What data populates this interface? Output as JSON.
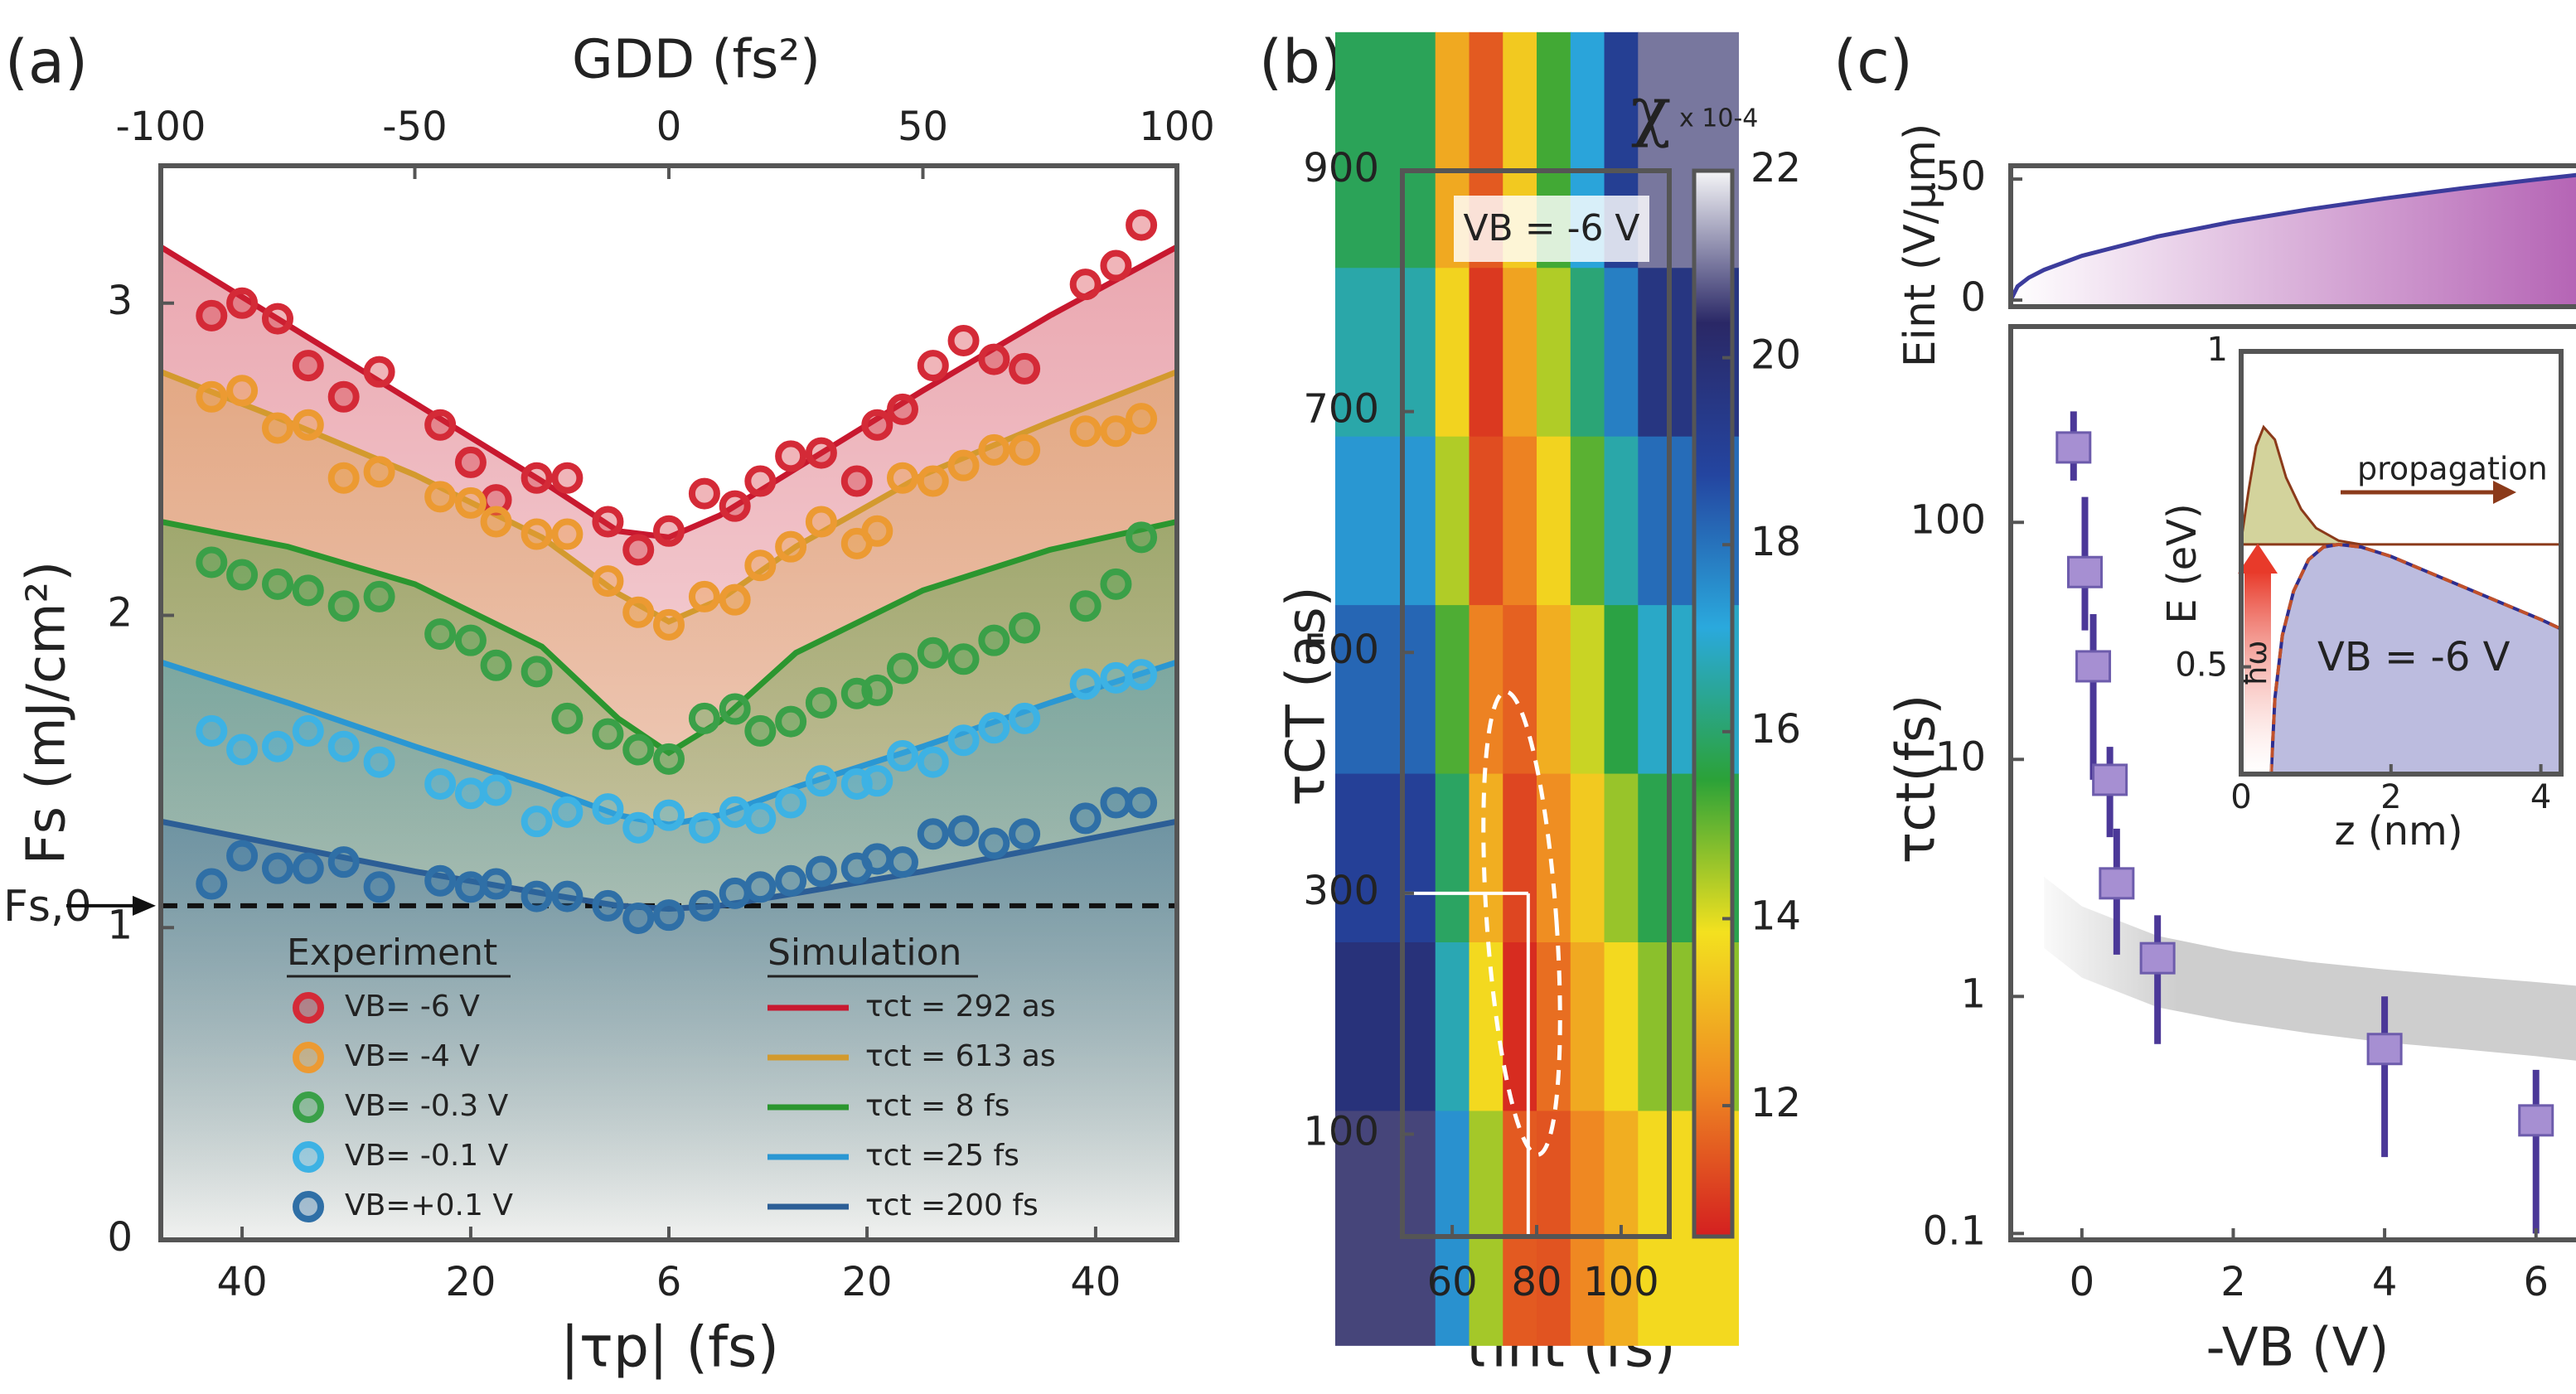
{
  "chart_data": [
    {
      "type": "scatter-line",
      "panel": "(a)",
      "xlabel": "|τp| (fs)",
      "x2label": "GDD (fs²)",
      "ylabel": "Fs (mJ/cm²)",
      "xlim": [
        -100,
        100
      ],
      "ylim": [
        0,
        3.44
      ],
      "x2ticks": [
        -100,
        -50,
        0,
        50,
        100
      ],
      "xticks": [
        {
          "value": -84,
          "label": "40"
        },
        {
          "value": -39,
          "label": "20"
        },
        {
          "value": 0,
          "label": "6"
        },
        {
          "value": 39,
          "label": "20"
        },
        {
          "value": 84,
          "label": "40"
        }
      ],
      "yticks": [
        0,
        1,
        2,
        3
      ],
      "reference": {
        "value": 1.07,
        "label": "Fs,0"
      },
      "legend_titles": [
        "Experiment",
        "Simulation"
      ],
      "x": [
        -90,
        -84,
        -77,
        -71,
        -64,
        -57,
        -45,
        -39,
        -34,
        -26,
        -20,
        -12,
        -6,
        0,
        7,
        13,
        18,
        24,
        30,
        37,
        41,
        46,
        52,
        58,
        64,
        70,
        82,
        88,
        93
      ],
      "series": [
        {
          "name": "VB= -6 V",
          "color": "#d42a37",
          "values": [
            2.96,
            3.0,
            2.95,
            2.8,
            2.7,
            2.78,
            2.61,
            2.49,
            2.37,
            2.44,
            2.44,
            2.3,
            2.21,
            2.27,
            2.39,
            2.35,
            2.43,
            2.51,
            2.52,
            2.43,
            2.61,
            2.66,
            2.8,
            2.88,
            2.82,
            2.79,
            3.06,
            3.12,
            3.25
          ]
        },
        {
          "name": "VB= -4 V",
          "color": "#ec9a32",
          "values": [
            2.7,
            2.72,
            2.6,
            2.61,
            2.44,
            2.46,
            2.38,
            2.36,
            2.3,
            2.26,
            2.26,
            2.11,
            2.01,
            1.97,
            2.06,
            2.05,
            2.16,
            2.22,
            2.3,
            2.23,
            2.27,
            2.44,
            2.43,
            2.48,
            2.53,
            2.53,
            2.59,
            2.59,
            2.63
          ]
        },
        {
          "name": "VB= -0.3 V",
          "color": "#3aa048",
          "values": [
            2.17,
            2.13,
            2.1,
            2.08,
            2.03,
            2.06,
            1.94,
            1.92,
            1.84,
            1.82,
            1.67,
            1.62,
            1.57,
            1.54,
            1.67,
            1.7,
            1.63,
            1.66,
            1.72,
            1.75,
            1.76,
            1.83,
            1.88,
            1.86,
            1.92,
            1.96,
            2.03,
            2.1,
            2.25
          ]
        },
        {
          "name": "VB= -0.1 V",
          "color": "#3db2e4",
          "values": [
            1.63,
            1.57,
            1.58,
            1.63,
            1.58,
            1.53,
            1.46,
            1.43,
            1.44,
            1.34,
            1.37,
            1.38,
            1.32,
            1.36,
            1.32,
            1.37,
            1.35,
            1.4,
            1.47,
            1.46,
            1.47,
            1.55,
            1.53,
            1.6,
            1.64,
            1.67,
            1.78,
            1.8,
            1.81
          ]
        },
        {
          "name": "VB=+0.1 V",
          "color": "#2f6fa6",
          "values": [
            1.14,
            1.23,
            1.19,
            1.19,
            1.21,
            1.13,
            1.15,
            1.13,
            1.14,
            1.1,
            1.1,
            1.07,
            1.03,
            1.04,
            1.07,
            1.11,
            1.13,
            1.15,
            1.18,
            1.19,
            1.22,
            1.21,
            1.3,
            1.31,
            1.27,
            1.3,
            1.35,
            1.4,
            1.4
          ]
        }
      ],
      "fits": {
        "x": [
          -100,
          -75,
          -50,
          -25,
          -10,
          0,
          10,
          25,
          50,
          75,
          100
        ],
        "series": [
          {
            "name": "τct = 292 as",
            "color": "#c8182f",
            "values": [
              3.18,
              2.93,
              2.68,
              2.43,
              2.27,
              2.25,
              2.32,
              2.47,
              2.72,
              2.96,
              3.18
            ]
          },
          {
            "name": "τct = 613 as",
            "color": "#d39a2e",
            "values": [
              2.78,
              2.62,
              2.45,
              2.25,
              2.07,
              1.98,
              2.05,
              2.22,
              2.45,
              2.62,
              2.78
            ]
          },
          {
            "name": "τct = 8 fs",
            "color": "#2b962f",
            "values": [
              2.3,
              2.22,
              2.1,
              1.9,
              1.67,
              1.56,
              1.66,
              1.88,
              2.08,
              2.21,
              2.3
            ]
          },
          {
            "name": "τct =25 fs",
            "color": "#2a97d3",
            "values": [
              1.85,
              1.72,
              1.58,
              1.45,
              1.36,
              1.33,
              1.36,
              1.45,
              1.58,
              1.72,
              1.85
            ]
          },
          {
            "name": "τct =200 fs",
            "color": "#2c5e96",
            "values": [
              1.34,
              1.26,
              1.18,
              1.11,
              1.07,
              1.06,
              1.07,
              1.11,
              1.18,
              1.26,
              1.34
            ]
          }
        ]
      }
    },
    {
      "type": "heatmap",
      "panel": "(b)",
      "xlabel": "τint (fs)",
      "ylabel": "τCT (as)",
      "xlim": [
        48.2,
        111.4
      ],
      "ylim": [
        15,
        900
      ],
      "xticks": [
        60,
        80,
        100
      ],
      "yticks": [
        100,
        300,
        500,
        700,
        900
      ],
      "x": [
        52,
        60,
        68,
        76,
        84,
        92,
        100,
        108
      ],
      "y": [
        50,
        190,
        330,
        470,
        610,
        750,
        890
      ],
      "z": [
        [
          20.6,
          17.5,
          14.5,
          11.5,
          11.4,
          12.2,
          12.9,
          13.7
        ],
        [
          19.8,
          16.7,
          13.7,
          10.8,
          11.8,
          12.8,
          13.7,
          14.7
        ],
        [
          19.0,
          15.9,
          12.9,
          11.2,
          12.3,
          13.4,
          14.6,
          15.7
        ],
        [
          18.2,
          15.2,
          12.1,
          11.6,
          12.9,
          14.2,
          15.6,
          16.9
        ],
        [
          17.4,
          14.4,
          11.3,
          12.1,
          13.6,
          15.1,
          16.6,
          18.1
        ],
        [
          16.6,
          13.6,
          11.0,
          12.7,
          14.4,
          16.1,
          17.8,
          19.6
        ],
        [
          15.8,
          12.8,
          11.5,
          13.4,
          15.3,
          17.2,
          19.1,
          21.0
        ]
      ],
      "clim": [
        10.6,
        22
      ],
      "cticks": [
        12,
        14,
        16,
        18,
        20,
        22
      ],
      "colormap": [
        "#d41f20",
        "#ef8a22",
        "#f3e11f",
        "#2ba238",
        "#2aa9dd",
        "#2445a0",
        "#2a2866",
        "#f5f5f7"
      ],
      "colorbar_label": "χ",
      "colorbar_scale": "x 10-4",
      "annotation": "VB = -6 V",
      "crosshair": {
        "x": 78,
        "y": 300
      }
    },
    {
      "type": "line",
      "ylabel": "Eint (V/µm)",
      "xlim": [
        -0.94,
        6.66
      ],
      "ylim": [
        -2.7,
        55.5
      ],
      "yticks": [
        0,
        50
      ],
      "x": [
        -0.94,
        -0.85,
        -0.7,
        -0.5,
        0,
        1,
        2,
        3,
        4,
        5,
        6,
        6.66
      ],
      "values": [
        0,
        5.7,
        9.3,
        12.5,
        18.3,
        26.3,
        32.4,
        37.5,
        42.0,
        46.1,
        49.8,
        52.1
      ],
      "color": "#3c3c9c",
      "fill": "#b462b4"
    },
    {
      "type": "scatter-errorbar",
      "panel": "(c)",
      "xlabel": "-VB (V)",
      "ylabel": "τct(fs)",
      "log_y": true,
      "xlim": [
        -0.94,
        6.66
      ],
      "ylim": [
        0.094,
        670
      ],
      "xticks": [
        0,
        2,
        4,
        6
      ],
      "yticks": [
        0.1,
        1,
        10,
        100
      ],
      "x": [
        -0.11,
        0.04,
        0.15,
        0.37,
        0.46,
        1.0,
        4.0,
        6.0
      ],
      "values": [
        207,
        61.7,
        24.7,
        8.2,
        3.0,
        1.45,
        0.6,
        0.3
      ],
      "lower": [
        150,
        35,
        8.2,
        4.7,
        1.5,
        0.63,
        0.21,
        0.1
      ],
      "upper": [
        294,
        128,
        41,
        11.3,
        5.1,
        2.2,
        1.0,
        0.49
      ],
      "color": "#a68fd2",
      "error_color": "#4b3898",
      "band": {
        "x": [
          -0.5,
          0,
          1,
          2,
          3,
          4,
          5,
          6,
          6.66
        ],
        "upper": [
          3.2,
          2.4,
          1.8,
          1.55,
          1.4,
          1.3,
          1.22,
          1.15,
          1.1
        ],
        "lower": [
          1.6,
          1.2,
          0.9,
          0.78,
          0.7,
          0.64,
          0.6,
          0.56,
          0.53
        ],
        "color": "#c8c8c8"
      }
    },
    {
      "type": "inset-line",
      "xlabel": "z (nm)",
      "ylabel": "E (eV)",
      "xlim": [
        0,
        4.27
      ],
      "ylim": [
        0.33,
        1
      ],
      "xticks": [
        0,
        2,
        4
      ],
      "yticks": [
        0.5,
        1
      ],
      "curves": [
        {
          "x": [
            0.4,
            0.45,
            0.55,
            0.7,
            0.9,
            1.1,
            1.3,
            1.6,
            2,
            2.5,
            3,
            3.5,
            4,
            4.27
          ],
          "values": [
            0.33,
            0.45,
            0.55,
            0.62,
            0.67,
            0.69,
            0.694,
            0.69,
            0.675,
            0.65,
            0.625,
            0.6,
            0.575,
            0.56
          ],
          "color": "#2e2e8f",
          "fill": "#bcbcdf"
        },
        {
          "x": [
            0,
            0.1,
            0.2,
            0.3,
            0.45,
            0.6,
            0.8,
            1.0,
            1.3,
            1.6
          ],
          "values": [
            0.7,
            0.78,
            0.85,
            0.88,
            0.86,
            0.8,
            0.75,
            0.72,
            0.7,
            0.694
          ],
          "color": "#8b3a1a",
          "fill": "#d3d39c"
        }
      ],
      "level": 0.694,
      "annotations": [
        "propagation",
        "ħω",
        "VB = -6 V"
      ]
    }
  ]
}
